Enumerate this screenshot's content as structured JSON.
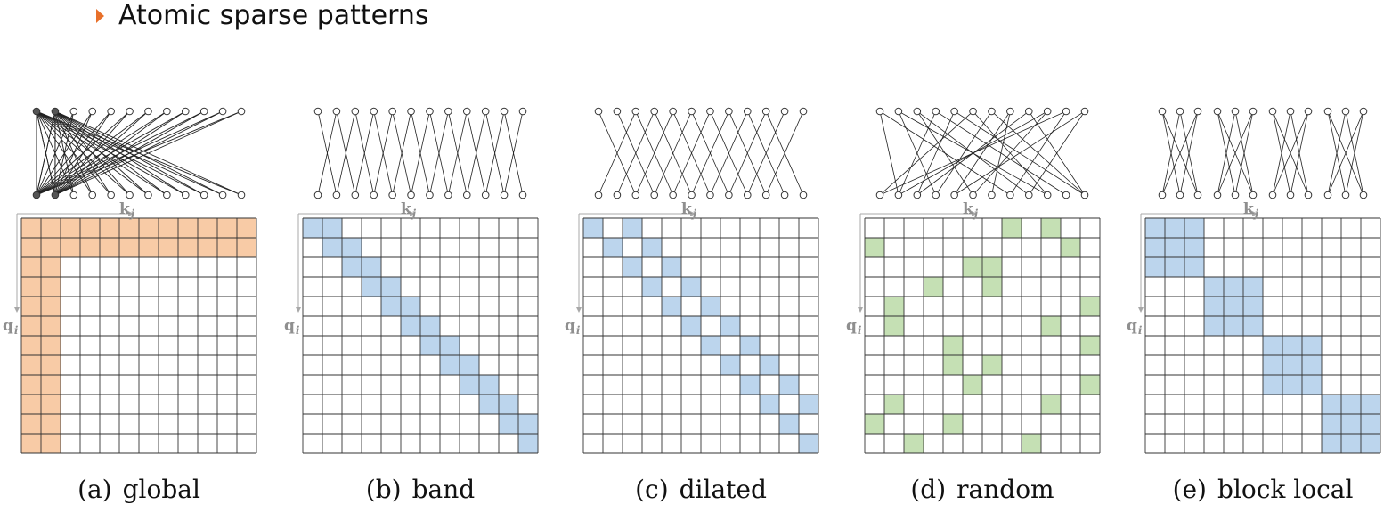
{
  "heading": {
    "bullet_color": "#e8702a",
    "title": "Atomic sparse patterns"
  },
  "axis_labels": {
    "key": "k",
    "key_sub": "j",
    "query": "q",
    "query_sub": "i"
  },
  "grid_size": 12,
  "node_count": 12,
  "panels": [
    {
      "id": "global",
      "caption_letter": "(a)",
      "caption_name": "global",
      "fill_color": "#f8cba6",
      "pattern": {
        "type": "global",
        "global_tokens": [
          0,
          1
        ]
      },
      "graph": {
        "type": "global",
        "global_tokens": [
          0,
          1
        ]
      }
    },
    {
      "id": "band",
      "caption_letter": "(b)",
      "caption_name": "band",
      "fill_color": "#bcd5ed",
      "pattern": {
        "type": "band",
        "width": 2
      },
      "graph": {
        "type": "offsets",
        "offsets": [
          -1,
          1
        ]
      }
    },
    {
      "id": "dilated",
      "caption_letter": "(c)",
      "caption_name": "dilated",
      "fill_color": "#bcd5ed",
      "pattern": {
        "type": "dilated",
        "offsets": [
          0,
          2
        ]
      },
      "graph": {
        "type": "offsets",
        "offsets": [
          -2,
          2
        ]
      }
    },
    {
      "id": "random",
      "caption_letter": "(d)",
      "caption_name": "random",
      "fill_color": "#c5e0b4",
      "pattern": {
        "type": "cells",
        "cells": [
          [
            0,
            7
          ],
          [
            0,
            9
          ],
          [
            1,
            0
          ],
          [
            1,
            10
          ],
          [
            2,
            5
          ],
          [
            2,
            6
          ],
          [
            3,
            3
          ],
          [
            3,
            6
          ],
          [
            4,
            1
          ],
          [
            4,
            11
          ],
          [
            5,
            1
          ],
          [
            5,
            9
          ],
          [
            6,
            4
          ],
          [
            6,
            11
          ],
          [
            7,
            4
          ],
          [
            7,
            6
          ],
          [
            8,
            5
          ],
          [
            8,
            11
          ],
          [
            9,
            1
          ],
          [
            9,
            9
          ],
          [
            10,
            0
          ],
          [
            10,
            4
          ],
          [
            11,
            2
          ],
          [
            11,
            8
          ]
        ]
      },
      "graph": {
        "type": "edges",
        "edges": [
          [
            0,
            1
          ],
          [
            0,
            7
          ],
          [
            1,
            3
          ],
          [
            1,
            9
          ],
          [
            2,
            5
          ],
          [
            2,
            8
          ],
          [
            3,
            1
          ],
          [
            3,
            10
          ],
          [
            4,
            2
          ],
          [
            4,
            11
          ],
          [
            5,
            0
          ],
          [
            5,
            9
          ],
          [
            6,
            3
          ],
          [
            6,
            11
          ],
          [
            7,
            4
          ],
          [
            7,
            6
          ],
          [
            8,
            2
          ],
          [
            8,
            11
          ],
          [
            9,
            1
          ],
          [
            9,
            5
          ],
          [
            10,
            0
          ],
          [
            10,
            7
          ],
          [
            11,
            4
          ],
          [
            11,
            8
          ]
        ]
      }
    },
    {
      "id": "block-local",
      "caption_letter": "(e)",
      "caption_name": "block local",
      "fill_color": "#bcd5ed",
      "pattern": {
        "type": "block",
        "block_size": 3
      },
      "graph": {
        "type": "block",
        "block_size": 3
      }
    }
  ]
}
